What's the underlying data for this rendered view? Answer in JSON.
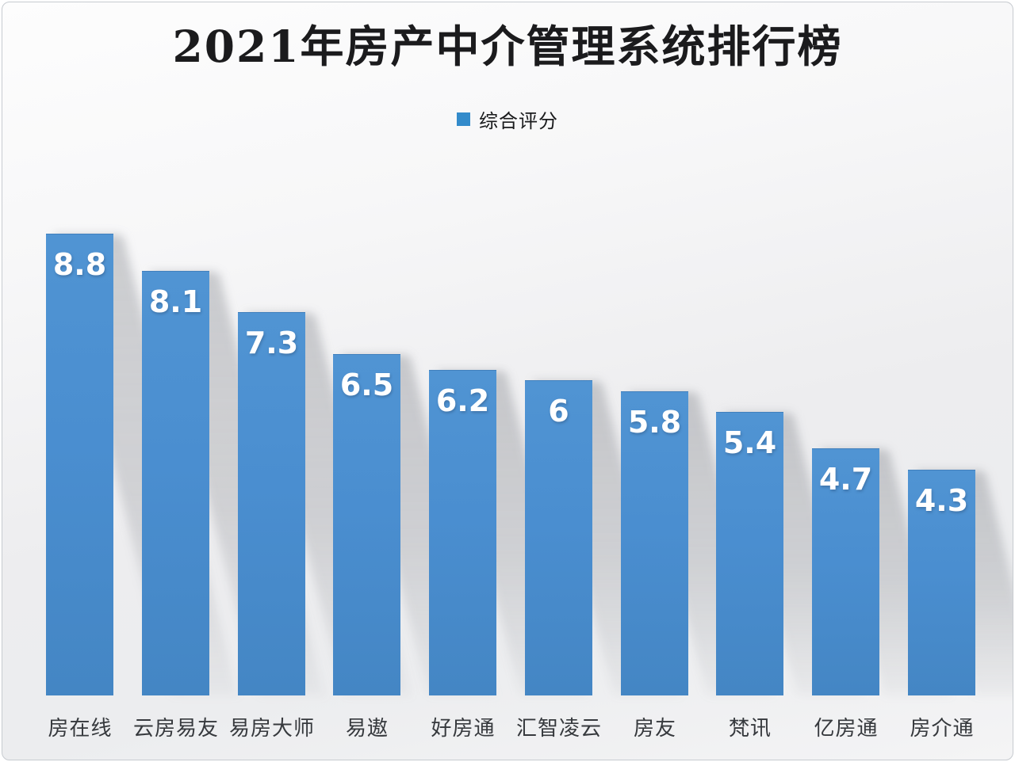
{
  "chart_data": {
    "type": "bar",
    "title": "2021年房产中介管理系统排行榜",
    "legend": {
      "position": "top-center",
      "items": [
        {
          "label": "综合评分",
          "swatch_color": "#338bcb"
        }
      ]
    },
    "categories": [
      "房在线",
      "云房易友",
      "易房大师",
      "易遨",
      "好房通",
      "汇智凌云",
      "房友",
      "梵讯",
      "亿房通",
      "房介通"
    ],
    "series": [
      {
        "name": "综合评分",
        "values": [
          8.8,
          8.1,
          7.3,
          6.5,
          6.2,
          6,
          5.8,
          5.4,
          4.7,
          4.3
        ]
      }
    ],
    "value_labels": [
      "8.8",
      "8.1",
      "7.3",
      "6.5",
      "6.2",
      "6",
      "5.8",
      "5.4",
      "4.7",
      "4.3"
    ],
    "ylim": [
      0,
      9
    ],
    "grid": false,
    "axes_visible": false,
    "data_label_style": "inside-top-white-bold",
    "bar_color": "#4a8ed0",
    "background_color": "#efeff1",
    "xlabel": "",
    "ylabel": ""
  }
}
